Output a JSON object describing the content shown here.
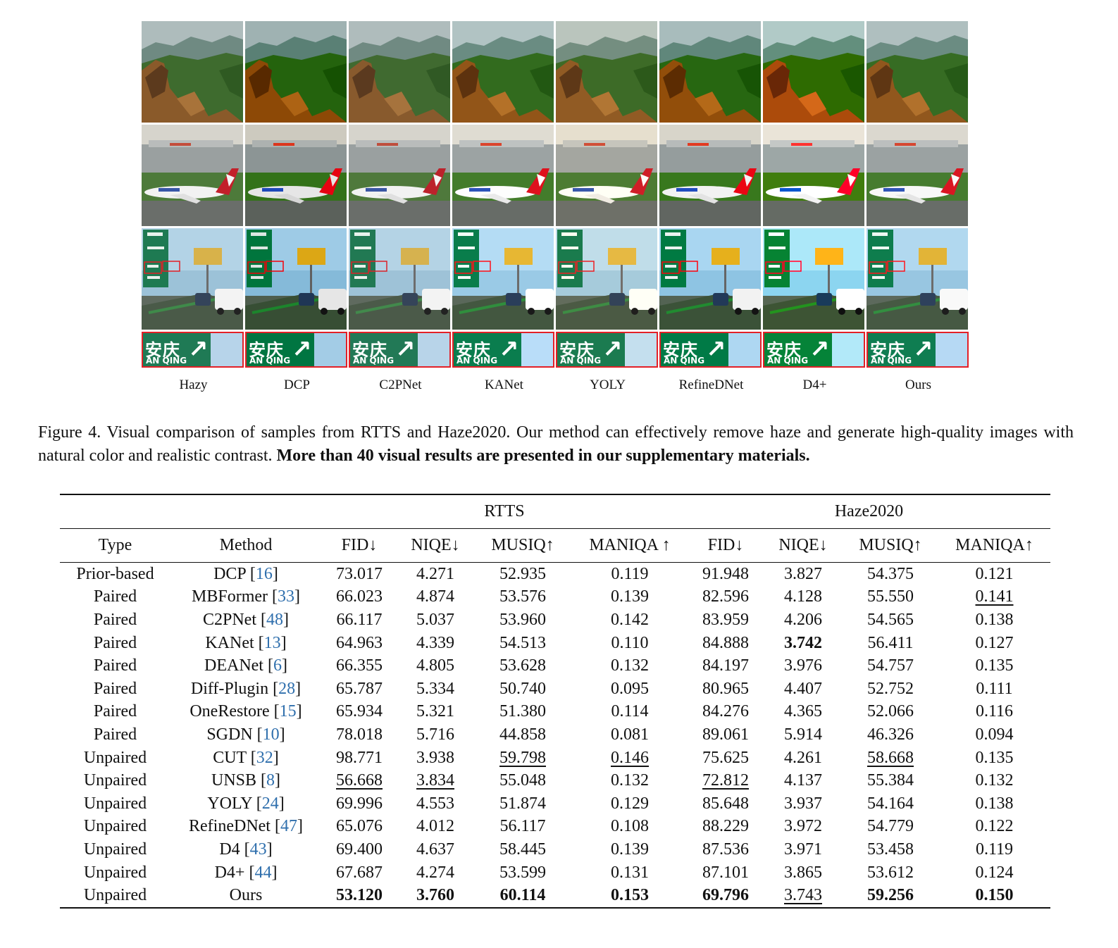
{
  "figure": {
    "methods": [
      "Hazy",
      "DCP",
      "C2PNet",
      "KANet",
      "YOLY",
      "RefineDNet",
      "D4+",
      "Ours"
    ],
    "crop_sign": {
      "chinese": "安庆",
      "pinyin": "AN QING"
    },
    "caption_label": "Figure 4.",
    "caption_text": "Visual comparison of samples from RTTS and Haze2020. Our method can effectively remove haze and generate high-quality images with natural color and realistic contrast.",
    "caption_bold": "More than 40 visual results are presented in our supplementary materials."
  },
  "table": {
    "groups": [
      "RTTS",
      "Haze2020"
    ],
    "headers": [
      "Type",
      "Method",
      "FID↓",
      "NIQE↓",
      "MUSIQ↑",
      "MANIQA ↑",
      "FID↓",
      "NIQE↓",
      "MUSIQ↑",
      "MANIQA↑"
    ],
    "rows": [
      {
        "type": "Prior-based",
        "method": "DCP",
        "ref": "16",
        "values": [
          "73.017",
          "4.271",
          "52.935",
          "0.119",
          "91.948",
          "3.827",
          "54.375",
          "0.121"
        ]
      },
      {
        "type": "Paired",
        "method": "MBFormer",
        "ref": "33",
        "values": [
          "66.023",
          "4.874",
          "53.576",
          "0.139",
          "82.596",
          "4.128",
          "55.550",
          "0.141"
        ]
      },
      {
        "type": "Paired",
        "method": "C2PNet",
        "ref": "48",
        "values": [
          "66.117",
          "5.037",
          "53.960",
          "0.142",
          "83.959",
          "4.206",
          "54.565",
          "0.138"
        ]
      },
      {
        "type": "Paired",
        "method": "KANet",
        "ref": "13",
        "values": [
          "64.963",
          "4.339",
          "54.513",
          "0.110",
          "84.888",
          "3.742",
          "56.411",
          "0.127"
        ]
      },
      {
        "type": "Paired",
        "method": "DEANet",
        "ref": "6",
        "values": [
          "66.355",
          "4.805",
          "53.628",
          "0.132",
          "84.197",
          "3.976",
          "54.757",
          "0.135"
        ]
      },
      {
        "type": "Paired",
        "method": "Diff-Plugin",
        "ref": "28",
        "values": [
          "65.787",
          "5.334",
          "50.740",
          "0.095",
          "80.965",
          "4.407",
          "52.752",
          "0.111"
        ]
      },
      {
        "type": "Paired",
        "method": "OneRestore",
        "ref": "15",
        "values": [
          "65.934",
          "5.321",
          "51.380",
          "0.114",
          "84.276",
          "4.365",
          "52.066",
          "0.116"
        ]
      },
      {
        "type": "Paired",
        "method": "SGDN",
        "ref": "10",
        "values": [
          "78.018",
          "5.716",
          "44.858",
          "0.081",
          "89.061",
          "5.914",
          "46.326",
          "0.094"
        ]
      },
      {
        "type": "Unpaired",
        "method": "CUT",
        "ref": "32",
        "values": [
          "98.771",
          "3.938",
          "59.798",
          "0.146",
          "75.625",
          "4.261",
          "58.668",
          "0.135"
        ]
      },
      {
        "type": "Unpaired",
        "method": "UNSB",
        "ref": "8",
        "values": [
          "56.668",
          "3.834",
          "55.048",
          "0.132",
          "72.812",
          "4.137",
          "55.384",
          "0.132"
        ]
      },
      {
        "type": "Unpaired",
        "method": "YOLY",
        "ref": "24",
        "values": [
          "69.996",
          "4.553",
          "51.874",
          "0.129",
          "85.648",
          "3.937",
          "54.164",
          "0.138"
        ]
      },
      {
        "type": "Unpaired",
        "method": "RefineDNet",
        "ref": "47",
        "values": [
          "65.076",
          "4.012",
          "56.117",
          "0.108",
          "88.229",
          "3.972",
          "54.779",
          "0.122"
        ]
      },
      {
        "type": "Unpaired",
        "method": "D4",
        "ref": "43",
        "values": [
          "69.400",
          "4.637",
          "58.445",
          "0.139",
          "87.536",
          "3.971",
          "53.458",
          "0.119"
        ]
      },
      {
        "type": "Unpaired",
        "method": "D4+",
        "ref": "44",
        "values": [
          "67.687",
          "4.274",
          "53.599",
          "0.131",
          "87.101",
          "3.865",
          "53.612",
          "0.124"
        ]
      },
      {
        "type": "Unpaired",
        "method": "Ours",
        "ref": "",
        "values": [
          "53.120",
          "3.760",
          "60.114",
          "0.153",
          "69.796",
          "3.743",
          "59.256",
          "0.150"
        ]
      }
    ],
    "best": [
      [
        14,
        0
      ],
      [
        14,
        1
      ],
      [
        14,
        2
      ],
      [
        14,
        3
      ],
      [
        14,
        4
      ],
      [
        3,
        5
      ],
      [
        14,
        6
      ],
      [
        14,
        7
      ]
    ],
    "second": [
      [
        9,
        0
      ],
      [
        9,
        1
      ],
      [
        8,
        2
      ],
      [
        8,
        3
      ],
      [
        9,
        4
      ],
      [
        14,
        5
      ],
      [
        8,
        6
      ],
      [
        1,
        7
      ]
    ]
  }
}
